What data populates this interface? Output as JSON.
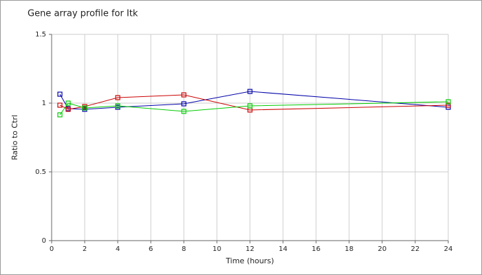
{
  "chart_data": {
    "type": "line",
    "title": "Gene array profile for Itk",
    "x_label": "Time (hours)",
    "y_label": "Ratio to Ctrl",
    "x": [
      0.5,
      1,
      2,
      4,
      8,
      12,
      24
    ],
    "series": [
      {
        "color": "#0000aa",
        "values": [
          1.065,
          0.96,
          0.955,
          0.97,
          0.995,
          1.085,
          0.97
        ]
      },
      {
        "color": "#cc0000",
        "values": [
          0.985,
          0.955,
          0.975,
          1.04,
          1.06,
          0.95,
          0.985
        ]
      },
      {
        "color": "#00cc00",
        "values": [
          0.915,
          1.0,
          0.965,
          0.98,
          0.94,
          0.98,
          1.01
        ]
      }
    ],
    "xlim": [
      0,
      24
    ],
    "xticks": [
      0,
      2,
      4,
      6,
      8,
      10,
      12,
      14,
      16,
      18,
      20,
      22,
      24
    ],
    "ylim": [
      0,
      1.5
    ],
    "yticks": [
      0,
      0.5,
      1,
      1.5
    ],
    "grid": true
  }
}
